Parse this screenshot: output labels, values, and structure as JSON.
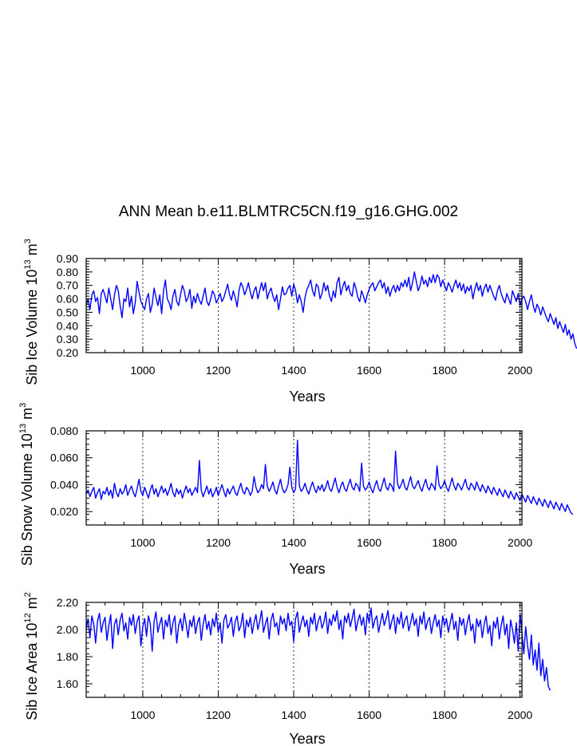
{
  "title": "ANN Mean b.e11.BLMTRC5CN.f19_g16.GHG.002",
  "colors": {
    "series": "#0000ff",
    "axes": "#000000",
    "grid": "#000000"
  },
  "chart_data": [
    {
      "type": "line",
      "name": "ice-volume",
      "ylabel_main": "Sib Ice Volume 10",
      "ylabel_exp": "13",
      "ylabel_unit": " m",
      "ylabel_unit_exp": "3",
      "xlabel": "Years",
      "xlim": [
        850,
        2005
      ],
      "ylim": [
        0.2,
        0.9
      ],
      "xticks": [
        1000,
        1200,
        1400,
        1600,
        1800,
        2000
      ],
      "xtick_labels": [
        "1000",
        "1200",
        "1400",
        "1600",
        "1800",
        "2000"
      ],
      "yticks": [
        0.2,
        0.3,
        0.4,
        0.5,
        0.6,
        0.7,
        0.8,
        0.9
      ],
      "ytick_labels": [
        "0.20",
        "0.30",
        "0.40",
        "0.50",
        "0.60",
        "0.70",
        "0.80",
        "0.90"
      ],
      "series_name": "Sib Ice Volume",
      "x_start": 850,
      "x_step": 5,
      "values": [
        0.55,
        0.6,
        0.52,
        0.63,
        0.66,
        0.58,
        0.61,
        0.49,
        0.64,
        0.67,
        0.62,
        0.57,
        0.68,
        0.6,
        0.52,
        0.63,
        0.7,
        0.66,
        0.55,
        0.46,
        0.6,
        0.58,
        0.68,
        0.54,
        0.62,
        0.49,
        0.57,
        0.73,
        0.65,
        0.58,
        0.55,
        0.52,
        0.6,
        0.64,
        0.5,
        0.56,
        0.68,
        0.61,
        0.55,
        0.63,
        0.49,
        0.66,
        0.74,
        0.6,
        0.57,
        0.52,
        0.62,
        0.67,
        0.58,
        0.55,
        0.63,
        0.7,
        0.66,
        0.58,
        0.61,
        0.67,
        0.53,
        0.62,
        0.57,
        0.64,
        0.59,
        0.56,
        0.62,
        0.68,
        0.58,
        0.55,
        0.6,
        0.66,
        0.63,
        0.57,
        0.6,
        0.64,
        0.58,
        0.61,
        0.66,
        0.71,
        0.63,
        0.59,
        0.66,
        0.61,
        0.54,
        0.66,
        0.72,
        0.69,
        0.63,
        0.67,
        0.72,
        0.65,
        0.6,
        0.66,
        0.69,
        0.6,
        0.66,
        0.72,
        0.66,
        0.72,
        0.6,
        0.65,
        0.68,
        0.62,
        0.58,
        0.63,
        0.52,
        0.6,
        0.69,
        0.63,
        0.64,
        0.68,
        0.7,
        0.62,
        0.71,
        0.66,
        0.57,
        0.63,
        0.58,
        0.5,
        0.61,
        0.67,
        0.7,
        0.74,
        0.66,
        0.62,
        0.71,
        0.69,
        0.6,
        0.64,
        0.72,
        0.66,
        0.7,
        0.62,
        0.58,
        0.66,
        0.61,
        0.72,
        0.76,
        0.63,
        0.69,
        0.73,
        0.66,
        0.7,
        0.64,
        0.62,
        0.72,
        0.68,
        0.61,
        0.58,
        0.66,
        0.62,
        0.57,
        0.63,
        0.67,
        0.7,
        0.72,
        0.66,
        0.69,
        0.72,
        0.74,
        0.68,
        0.72,
        0.64,
        0.69,
        0.62,
        0.67,
        0.7,
        0.65,
        0.7,
        0.66,
        0.72,
        0.69,
        0.74,
        0.69,
        0.76,
        0.66,
        0.72,
        0.8,
        0.73,
        0.66,
        0.7,
        0.77,
        0.71,
        0.74,
        0.69,
        0.76,
        0.72,
        0.78,
        0.72,
        0.78,
        0.76,
        0.69,
        0.74,
        0.7,
        0.66,
        0.72,
        0.69,
        0.65,
        0.7,
        0.74,
        0.68,
        0.72,
        0.66,
        0.71,
        0.64,
        0.69,
        0.66,
        0.7,
        0.6,
        0.67,
        0.72,
        0.66,
        0.7,
        0.62,
        0.68,
        0.71,
        0.65,
        0.7,
        0.66,
        0.62,
        0.59,
        0.66,
        0.7,
        0.64,
        0.6,
        0.57,
        0.64,
        0.6,
        0.56,
        0.66,
        0.62,
        0.58,
        0.64,
        0.55,
        0.6,
        0.62,
        0.58,
        0.52,
        0.58,
        0.63,
        0.55,
        0.5,
        0.56,
        0.53,
        0.48,
        0.54,
        0.5,
        0.46,
        0.43,
        0.49,
        0.45,
        0.41,
        0.46,
        0.38,
        0.43,
        0.39,
        0.35,
        0.41,
        0.33,
        0.37,
        0.3,
        0.34,
        0.27,
        0.23
      ]
    },
    {
      "type": "line",
      "name": "snow-volume",
      "ylabel_main": "Sib Snow Volume 10",
      "ylabel_exp": "13",
      "ylabel_unit": " m",
      "ylabel_unit_exp": "3",
      "xlabel": "Years",
      "xlim": [
        850,
        2005
      ],
      "ylim": [
        0.01,
        0.08
      ],
      "xticks": [
        1000,
        1200,
        1400,
        1600,
        1800,
        2000
      ],
      "xtick_labels": [
        "1000",
        "1200",
        "1400",
        "1600",
        "1800",
        "2000"
      ],
      "yticks": [
        0.02,
        0.04,
        0.06,
        0.08
      ],
      "ytick_labels": [
        "0.020",
        "0.040",
        "0.060",
        "0.080"
      ],
      "series_name": "Sib Snow Volume",
      "x_start": 850,
      "x_step": 5,
      "values": [
        0.033,
        0.036,
        0.031,
        0.035,
        0.038,
        0.03,
        0.034,
        0.037,
        0.029,
        0.035,
        0.033,
        0.038,
        0.032,
        0.036,
        0.03,
        0.041,
        0.034,
        0.031,
        0.037,
        0.033,
        0.035,
        0.04,
        0.032,
        0.036,
        0.039,
        0.034,
        0.031,
        0.037,
        0.044,
        0.035,
        0.032,
        0.038,
        0.034,
        0.03,
        0.036,
        0.04,
        0.033,
        0.037,
        0.031,
        0.035,
        0.039,
        0.034,
        0.037,
        0.032,
        0.036,
        0.041,
        0.034,
        0.031,
        0.037,
        0.033,
        0.036,
        0.03,
        0.035,
        0.039,
        0.034,
        0.037,
        0.032,
        0.035,
        0.038,
        0.034,
        0.058,
        0.036,
        0.031,
        0.035,
        0.039,
        0.033,
        0.037,
        0.031,
        0.034,
        0.038,
        0.032,
        0.036,
        0.04,
        0.035,
        0.031,
        0.037,
        0.033,
        0.036,
        0.039,
        0.034,
        0.032,
        0.037,
        0.041,
        0.035,
        0.033,
        0.038,
        0.036,
        0.032,
        0.035,
        0.046,
        0.038,
        0.034,
        0.036,
        0.04,
        0.037,
        0.055,
        0.039,
        0.035,
        0.038,
        0.042,
        0.036,
        0.033,
        0.039,
        0.044,
        0.037,
        0.034,
        0.036,
        0.04,
        0.053,
        0.038,
        0.034,
        0.037,
        0.073,
        0.039,
        0.035,
        0.037,
        0.041,
        0.036,
        0.033,
        0.038,
        0.042,
        0.037,
        0.034,
        0.039,
        0.036,
        0.04,
        0.035,
        0.038,
        0.043,
        0.037,
        0.035,
        0.04,
        0.045,
        0.038,
        0.034,
        0.039,
        0.042,
        0.037,
        0.035,
        0.04,
        0.044,
        0.038,
        0.036,
        0.041,
        0.039,
        0.035,
        0.056,
        0.039,
        0.036,
        0.038,
        0.042,
        0.037,
        0.034,
        0.039,
        0.043,
        0.037,
        0.035,
        0.04,
        0.045,
        0.038,
        0.036,
        0.041,
        0.039,
        0.035,
        0.065,
        0.041,
        0.037,
        0.04,
        0.044,
        0.038,
        0.036,
        0.041,
        0.046,
        0.039,
        0.037,
        0.04,
        0.043,
        0.038,
        0.035,
        0.04,
        0.044,
        0.038,
        0.036,
        0.041,
        0.039,
        0.036,
        0.054,
        0.04,
        0.037,
        0.039,
        0.043,
        0.038,
        0.035,
        0.04,
        0.045,
        0.039,
        0.036,
        0.041,
        0.039,
        0.036,
        0.04,
        0.044,
        0.038,
        0.036,
        0.041,
        0.039,
        0.036,
        0.042,
        0.038,
        0.035,
        0.04,
        0.037,
        0.034,
        0.039,
        0.036,
        0.033,
        0.038,
        0.035,
        0.032,
        0.037,
        0.034,
        0.031,
        0.036,
        0.033,
        0.03,
        0.035,
        0.032,
        0.029,
        0.034,
        0.031,
        0.028,
        0.033,
        0.03,
        0.027,
        0.032,
        0.029,
        0.026,
        0.031,
        0.028,
        0.025,
        0.03,
        0.027,
        0.024,
        0.029,
        0.026,
        0.023,
        0.028,
        0.025,
        0.022,
        0.027,
        0.024,
        0.021,
        0.026,
        0.023,
        0.02,
        0.025,
        0.022,
        0.019,
        0.018
      ]
    },
    {
      "type": "line",
      "name": "ice-area",
      "ylabel_main": "Sib Ice Area 10",
      "ylabel_exp": "12",
      "ylabel_unit": " m",
      "ylabel_unit_exp": "2",
      "xlabel": "Years",
      "xlim": [
        850,
        2005
      ],
      "ylim": [
        1.5,
        2.2
      ],
      "xticks": [
        1000,
        1200,
        1400,
        1600,
        1800,
        2000
      ],
      "xtick_labels": [
        "1000",
        "1200",
        "1400",
        "1600",
        "1800",
        "2000"
      ],
      "yticks": [
        1.6,
        1.8,
        2.0,
        2.2
      ],
      "ytick_labels": [
        "1.60",
        "1.80",
        "2.00",
        "2.20"
      ],
      "series_name": "Sib Ice Area",
      "x_start": 850,
      "x_step": 5,
      "values": [
        2.0,
        2.08,
        1.94,
        2.1,
        2.04,
        1.9,
        2.06,
        2.12,
        1.98,
        2.05,
        2.09,
        1.92,
        2.03,
        2.11,
        1.86,
        2.04,
        2.08,
        1.96,
        2.07,
        2.12,
        1.99,
        2.05,
        1.93,
        2.09,
        2.03,
        2.11,
        1.97,
        2.06,
        2.1,
        1.88,
        2.02,
        2.08,
        1.95,
        2.1,
        2.04,
        1.84,
        2.06,
        2.13,
        1.98,
        2.04,
        2.09,
        1.93,
        2.07,
        2.02,
        2.11,
        1.96,
        2.05,
        2.1,
        1.9,
        2.03,
        2.08,
        1.99,
        2.12,
        2.04,
        1.94,
        2.07,
        2.02,
        2.1,
        1.97,
        2.05,
        2.09,
        1.92,
        2.04,
        2.11,
        2.0,
        2.06,
        1.96,
        2.08,
        2.02,
        2.12,
        1.98,
        2.05,
        1.9,
        2.07,
        2.11,
        2.01,
        2.04,
        2.09,
        1.95,
        2.06,
        2.1,
        1.99,
        2.03,
        2.12,
        1.94,
        2.07,
        2.02,
        2.09,
        1.97,
        2.05,
        2.11,
        2.0,
        2.06,
        2.14,
        1.98,
        2.04,
        2.09,
        1.93,
        2.07,
        2.12,
        2.02,
        2.05,
        1.96,
        2.1,
        2.04,
        2.08,
        1.99,
        2.12,
        2.03,
        2.06,
        1.91,
        2.08,
        2.13,
        1.98,
        2.05,
        2.1,
        2.02,
        2.07,
        1.95,
        2.09,
        2.04,
        2.12,
        1.99,
        2.06,
        2.1,
        2.01,
        2.05,
        2.13,
        1.97,
        2.08,
        2.03,
        2.11,
        2.06,
        2.14,
        2.0,
        2.07,
        1.93,
        2.1,
        2.05,
        2.12,
        2.02,
        2.08,
        2.15,
        1.99,
        2.06,
        2.11,
        2.03,
        2.09,
        1.96,
        2.12,
        2.05,
        2.16,
        2.01,
        2.07,
        2.1,
        1.98,
        2.05,
        2.12,
        2.03,
        2.08,
        2.14,
        2.0,
        2.06,
        2.11,
        1.97,
        2.09,
        2.04,
        2.13,
        2.01,
        2.07,
        2.1,
        1.99,
        2.05,
        2.12,
        2.03,
        2.08,
        1.95,
        2.1,
        2.04,
        2.13,
        2.0,
        2.06,
        2.09,
        1.97,
        2.05,
        2.11,
        2.02,
        2.07,
        1.94,
        2.1,
        2.03,
        2.08,
        1.98,
        2.05,
        2.12,
        2.0,
        2.06,
        1.92,
        2.09,
        2.03,
        2.08,
        1.96,
        2.05,
        2.11,
        1.99,
        2.04,
        1.9,
        2.08,
        2.02,
        2.07,
        1.94,
        2.04,
        2.1,
        1.97,
        2.03,
        1.88,
        2.06,
        2.01,
        2.09,
        1.93,
        2.03,
        2.1,
        1.96,
        2.04,
        1.86,
        2.07,
        2.0,
        1.9,
        2.05,
        1.84,
        2.12,
        1.98,
        1.82,
        2.02,
        1.88,
        1.78,
        1.96,
        1.74,
        1.85,
        1.7,
        1.9,
        1.66,
        1.78,
        1.62,
        1.72,
        1.58,
        1.55
      ]
    }
  ]
}
